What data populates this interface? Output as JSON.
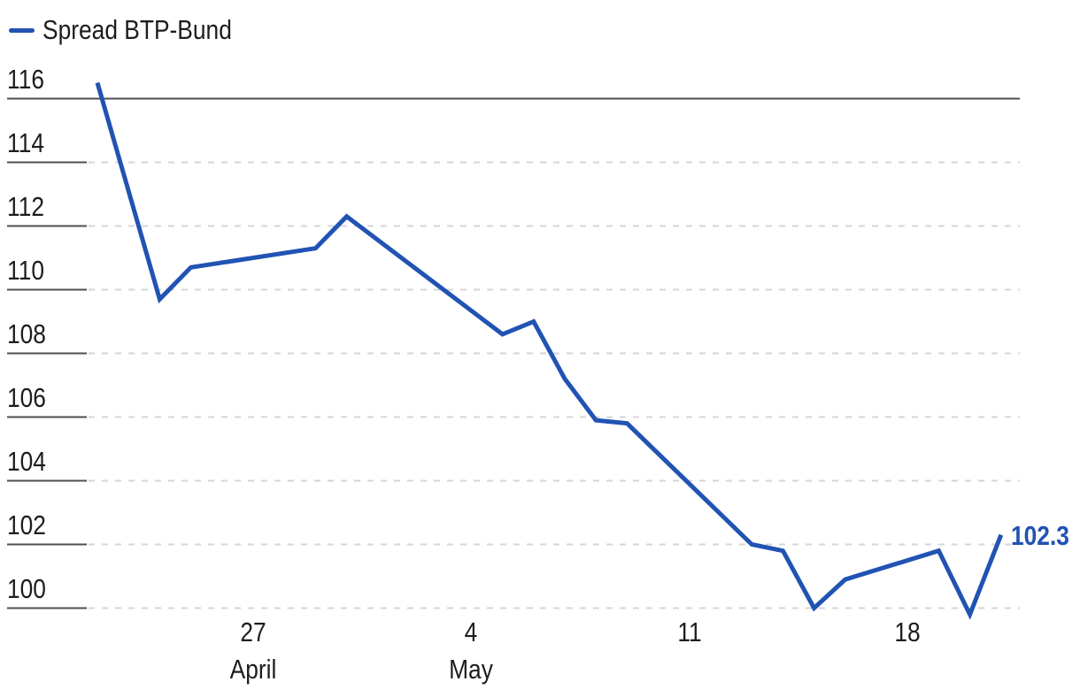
{
  "legend": {
    "label": "Spread BTP-Bund"
  },
  "colors": {
    "line": "#2153b3",
    "grid_dark": "#4f4f4f",
    "grid_light": "#d5d5d5",
    "text": "#1d1d1d",
    "end_label": "#2153b3"
  },
  "chart_data": {
    "type": "line",
    "title": "",
    "xlabel": "",
    "ylabel": "",
    "legend_position": "top-left",
    "grid": "horizontal, dashed light gray; top line solid dark; short solid dark stub under each y label",
    "last_value_label": "102.3",
    "series": [
      {
        "name": "Spread BTP-Bund",
        "points": [
          {
            "day": 0,
            "value": 116.5
          },
          {
            "day": 2,
            "value": 109.7
          },
          {
            "day": 3,
            "value": 110.7
          },
          {
            "day": 7,
            "value": 111.3
          },
          {
            "day": 8,
            "value": 112.3
          },
          {
            "day": 13,
            "value": 108.6
          },
          {
            "day": 14,
            "value": 109.0
          },
          {
            "day": 15,
            "value": 107.2
          },
          {
            "day": 16,
            "value": 105.9
          },
          {
            "day": 17,
            "value": 105.8
          },
          {
            "day": 21,
            "value": 102.0
          },
          {
            "day": 22,
            "value": 101.8
          },
          {
            "day": 23,
            "value": 100.0
          },
          {
            "day": 24,
            "value": 100.9
          },
          {
            "day": 27,
            "value": 101.8
          },
          {
            "day": 28,
            "value": 99.8
          },
          {
            "day": 29,
            "value": 102.3
          }
        ]
      }
    ],
    "x_axis": {
      "unit": "days (day 0 = first point)",
      "ticks": [
        {
          "day": 5,
          "label": "27",
          "sublabel": "April"
        },
        {
          "day": 12,
          "label": "4",
          "sublabel": "May"
        },
        {
          "day": 19,
          "label": "11",
          "sublabel": ""
        },
        {
          "day": 26,
          "label": "18",
          "sublabel": ""
        }
      ]
    },
    "y_axis": {
      "ticks": [
        116,
        114,
        112,
        110,
        108,
        106,
        104,
        102,
        100
      ],
      "min": 100,
      "max": 116,
      "solid_top_tick": 116
    }
  }
}
